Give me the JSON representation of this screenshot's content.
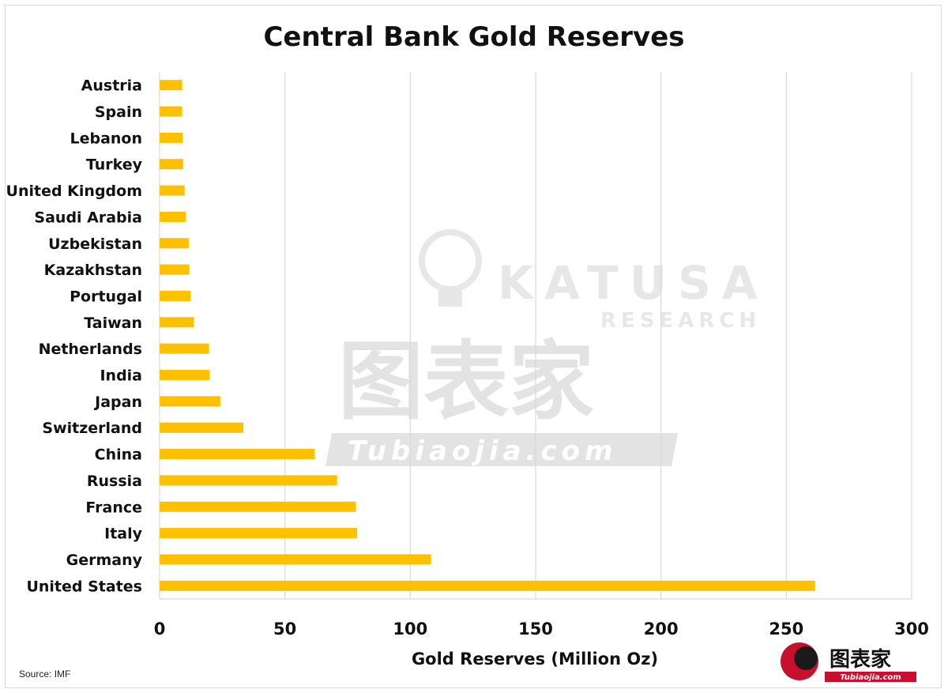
{
  "chart_data": {
    "type": "bar",
    "orientation": "horizontal",
    "title": "Central Bank Gold Reserves",
    "xlabel": "Gold Reserves (Million Oz)",
    "ylabel": "",
    "xlim": [
      0,
      300
    ],
    "xticks": [
      "0",
      "50",
      "100",
      "150",
      "200",
      "250",
      "300"
    ],
    "grid": "vertical",
    "bar_color": "#FFC000",
    "categories": [
      "Austria",
      "Spain",
      "Lebanon",
      "Turkey",
      "United Kingdom",
      "Saudi Arabia",
      "Uzbekistan",
      "Kazakhstan",
      "Portugal",
      "Taiwan",
      "Netherlands",
      "India",
      "Japan",
      "Switzerland",
      "China",
      "Russia",
      "France",
      "Italy",
      "Germany",
      "United States"
    ],
    "values": [
      9.0,
      9.0,
      9.2,
      9.4,
      10.0,
      10.4,
      11.6,
      11.9,
      12.3,
      13.6,
      19.7,
      19.9,
      24.2,
      33.4,
      61.9,
      70.8,
      78.3,
      78.8,
      108.3,
      261.5
    ]
  },
  "footer": {
    "source": "Source: IMF"
  },
  "watermarks": {
    "katusa": "KATUSA",
    "research": "RESEARCH",
    "tubiaojia_cn": "图表家",
    "tubiaojia_url": "Tubiaojia.com"
  }
}
